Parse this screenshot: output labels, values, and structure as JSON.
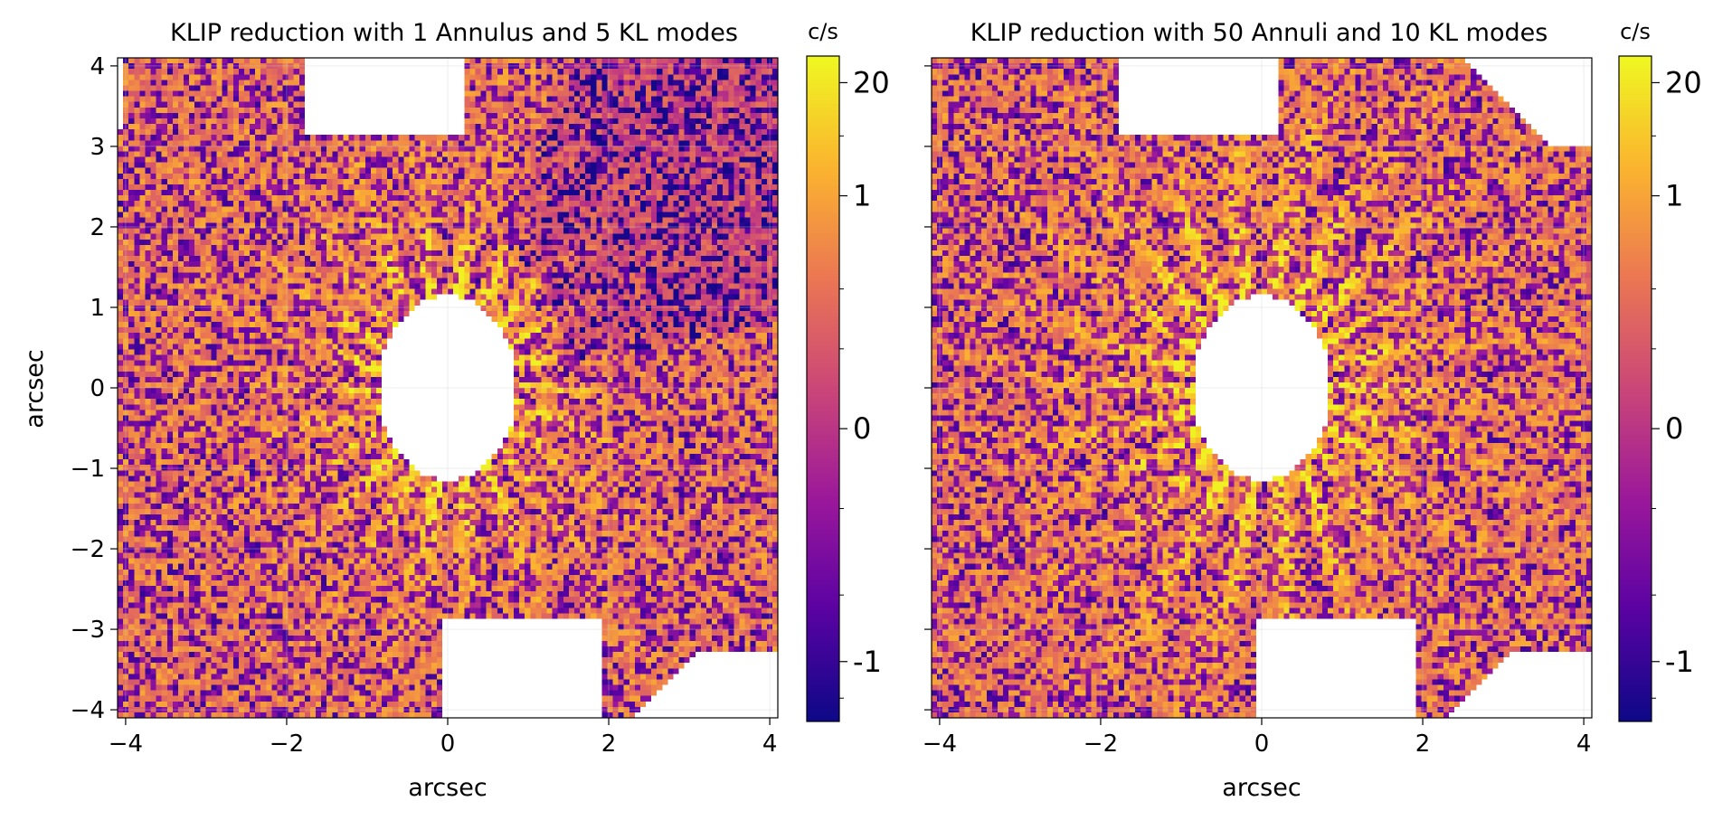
{
  "chart_data": [
    {
      "type": "heatmap",
      "title": "KLIP reduction with 1 Annulus and 5 KL modes",
      "xlabel": "arcsec",
      "ylabel": "arcsec",
      "xlim": [
        -4.1,
        4.1
      ],
      "ylim": [
        -4.1,
        4.1
      ],
      "xticks": [
        -4,
        -2,
        0,
        2,
        4
      ],
      "yticks": [
        -4,
        -3,
        -2,
        -1,
        0,
        1,
        2,
        3,
        4
      ],
      "xtick_labels": [
        "−4",
        "−2",
        "0",
        "2",
        "4"
      ],
      "ytick_labels": [
        "−4",
        "−3",
        "−2",
        "−1",
        "0",
        "1",
        "2",
        "3",
        "4"
      ],
      "grid": true,
      "colormap": "plasma",
      "colorbar": {
        "unit_label": "c/s",
        "ticks": [
          "-1",
          "0",
          "1",
          "20"
        ],
        "tick_positions": [
          0.09,
          0.44,
          0.79,
          0.96
        ]
      }
    },
    {
      "type": "heatmap",
      "title": "KLIP reduction with 50 Annuli and 10 KL modes",
      "xlabel": "arcsec",
      "ylabel": "",
      "xlim": [
        -4.1,
        4.1
      ],
      "ylim": [
        -4.1,
        4.1
      ],
      "xticks": [
        -4,
        -2,
        0,
        2,
        4
      ],
      "yticks": [
        -4,
        -3,
        -2,
        -1,
        0,
        1,
        2,
        3,
        4
      ],
      "xtick_labels": [
        "−4",
        "−2",
        "0",
        "2",
        "4"
      ],
      "ytick_labels": [],
      "grid": true,
      "colormap": "plasma",
      "colorbar": {
        "unit_label": "c/s",
        "ticks": [
          "-1",
          "0",
          "1",
          "20"
        ],
        "tick_positions": [
          0.09,
          0.44,
          0.79,
          0.96
        ]
      }
    }
  ],
  "colors": {
    "plasma": [
      "#0d0887",
      "#5b02a3",
      "#9a179b",
      "#cb4678",
      "#eb7852",
      "#fbb32f",
      "#eff821"
    ]
  }
}
